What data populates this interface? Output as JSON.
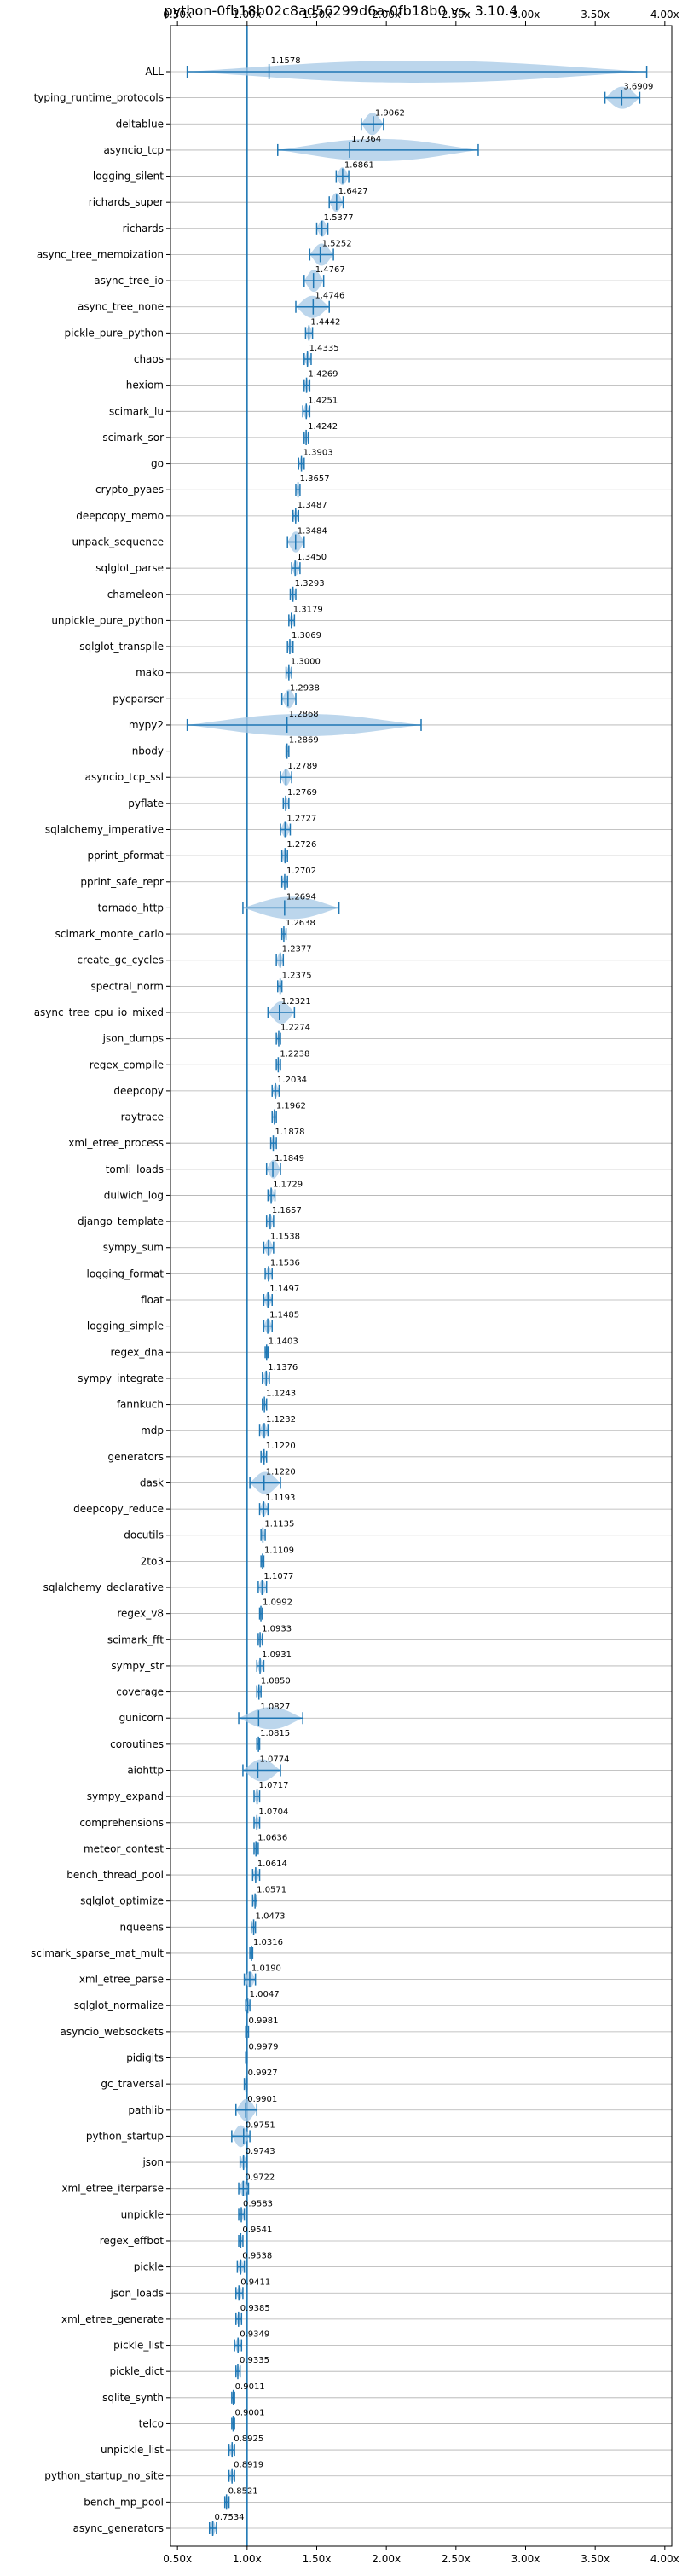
{
  "chart_data": {
    "type": "violin",
    "title": "python-0fb18b02c8ad56299d6a-0fb18b0 vs. 3.10.4",
    "xlim": [
      0.45,
      4.05
    ],
    "xticks": [
      "0.50x",
      "1.00x",
      "1.50x",
      "2.00x",
      "2.50x",
      "3.00x",
      "3.50x",
      "4.00x"
    ],
    "reference_line": 1.0,
    "orientation": "horizontal",
    "grid": "horizontal",
    "colors": {
      "violin": "#a6c8e6",
      "marker": "#1f77b4",
      "reference": "#1f77b4"
    },
    "benchmarks": [
      {
        "name": "ALL",
        "value": 1.1578,
        "min": 0.57,
        "max": 3.87
      },
      {
        "name": "typing_runtime_protocols",
        "value": 3.6909,
        "min": 3.57,
        "max": 3.82
      },
      {
        "name": "deltablue",
        "value": 1.9062,
        "min": 1.82,
        "max": 1.98
      },
      {
        "name": "asyncio_tcp",
        "value": 1.7364,
        "min": 1.22,
        "max": 2.66
      },
      {
        "name": "logging_silent",
        "value": 1.6861,
        "min": 1.64,
        "max": 1.73
      },
      {
        "name": "richards_super",
        "value": 1.6427,
        "min": 1.59,
        "max": 1.69
      },
      {
        "name": "richards",
        "value": 1.5377,
        "min": 1.5,
        "max": 1.58
      },
      {
        "name": "async_tree_memoization",
        "value": 1.5252,
        "min": 1.45,
        "max": 1.62
      },
      {
        "name": "async_tree_io",
        "value": 1.4767,
        "min": 1.41,
        "max": 1.55
      },
      {
        "name": "async_tree_none",
        "value": 1.4746,
        "min": 1.35,
        "max": 1.59
      },
      {
        "name": "pickle_pure_python",
        "value": 1.4442,
        "min": 1.42,
        "max": 1.47
      },
      {
        "name": "chaos",
        "value": 1.4335,
        "min": 1.41,
        "max": 1.46
      },
      {
        "name": "hexiom",
        "value": 1.4269,
        "min": 1.41,
        "max": 1.45
      },
      {
        "name": "scimark_lu",
        "value": 1.4251,
        "min": 1.4,
        "max": 1.45
      },
      {
        "name": "scimark_sor",
        "value": 1.4242,
        "min": 1.41,
        "max": 1.44
      },
      {
        "name": "go",
        "value": 1.3903,
        "min": 1.37,
        "max": 1.41
      },
      {
        "name": "crypto_pyaes",
        "value": 1.3657,
        "min": 1.35,
        "max": 1.38
      },
      {
        "name": "deepcopy_memo",
        "value": 1.3487,
        "min": 1.33,
        "max": 1.37
      },
      {
        "name": "unpack_sequence",
        "value": 1.3484,
        "min": 1.29,
        "max": 1.41
      },
      {
        "name": "sqlglot_parse",
        "value": 1.345,
        "min": 1.32,
        "max": 1.38
      },
      {
        "name": "chameleon",
        "value": 1.3293,
        "min": 1.31,
        "max": 1.35
      },
      {
        "name": "unpickle_pure_python",
        "value": 1.3179,
        "min": 1.3,
        "max": 1.34
      },
      {
        "name": "sqlglot_transpile",
        "value": 1.3069,
        "min": 1.29,
        "max": 1.33
      },
      {
        "name": "mako",
        "value": 1.3,
        "min": 1.28,
        "max": 1.32
      },
      {
        "name": "pycparser",
        "value": 1.2938,
        "min": 1.25,
        "max": 1.35
      },
      {
        "name": "mypy2",
        "value": 1.2868,
        "min": 0.57,
        "max": 2.25
      },
      {
        "name": "nbody",
        "value": 1.2869,
        "min": 1.28,
        "max": 1.3
      },
      {
        "name": "asyncio_tcp_ssl",
        "value": 1.2789,
        "min": 1.24,
        "max": 1.32
      },
      {
        "name": "pyflate",
        "value": 1.2769,
        "min": 1.26,
        "max": 1.3
      },
      {
        "name": "sqlalchemy_imperative",
        "value": 1.2727,
        "min": 1.24,
        "max": 1.31
      },
      {
        "name": "pprint_pformat",
        "value": 1.2726,
        "min": 1.25,
        "max": 1.29
      },
      {
        "name": "pprint_safe_repr",
        "value": 1.2702,
        "min": 1.25,
        "max": 1.29
      },
      {
        "name": "tornado_http",
        "value": 1.2694,
        "min": 0.97,
        "max": 1.66
      },
      {
        "name": "scimark_monte_carlo",
        "value": 1.2638,
        "min": 1.25,
        "max": 1.28
      },
      {
        "name": "create_gc_cycles",
        "value": 1.2377,
        "min": 1.21,
        "max": 1.26
      },
      {
        "name": "spectral_norm",
        "value": 1.2375,
        "min": 1.22,
        "max": 1.25
      },
      {
        "name": "async_tree_cpu_io_mixed",
        "value": 1.2321,
        "min": 1.15,
        "max": 1.34
      },
      {
        "name": "json_dumps",
        "value": 1.2274,
        "min": 1.21,
        "max": 1.24
      },
      {
        "name": "regex_compile",
        "value": 1.2238,
        "min": 1.21,
        "max": 1.24
      },
      {
        "name": "deepcopy",
        "value": 1.2034,
        "min": 1.18,
        "max": 1.23
      },
      {
        "name": "raytrace",
        "value": 1.1962,
        "min": 1.18,
        "max": 1.21
      },
      {
        "name": "xml_etree_process",
        "value": 1.1878,
        "min": 1.17,
        "max": 1.21
      },
      {
        "name": "tomli_loads",
        "value": 1.1849,
        "min": 1.14,
        "max": 1.24
      },
      {
        "name": "dulwich_log",
        "value": 1.1729,
        "min": 1.15,
        "max": 1.2
      },
      {
        "name": "django_template",
        "value": 1.1657,
        "min": 1.14,
        "max": 1.19
      },
      {
        "name": "sympy_sum",
        "value": 1.1538,
        "min": 1.12,
        "max": 1.19
      },
      {
        "name": "logging_format",
        "value": 1.1536,
        "min": 1.13,
        "max": 1.18
      },
      {
        "name": "float",
        "value": 1.1497,
        "min": 1.12,
        "max": 1.18
      },
      {
        "name": "logging_simple",
        "value": 1.1485,
        "min": 1.12,
        "max": 1.18
      },
      {
        "name": "regex_dna",
        "value": 1.1403,
        "min": 1.13,
        "max": 1.15
      },
      {
        "name": "sympy_integrate",
        "value": 1.1376,
        "min": 1.11,
        "max": 1.16
      },
      {
        "name": "fannkuch",
        "value": 1.1243,
        "min": 1.11,
        "max": 1.14
      },
      {
        "name": "mdp",
        "value": 1.1232,
        "min": 1.09,
        "max": 1.15
      },
      {
        "name": "generators",
        "value": 1.122,
        "min": 1.1,
        "max": 1.14
      },
      {
        "name": "dask",
        "value": 1.122,
        "min": 1.02,
        "max": 1.24
      },
      {
        "name": "deepcopy_reduce",
        "value": 1.1193,
        "min": 1.09,
        "max": 1.15
      },
      {
        "name": "docutils",
        "value": 1.1135,
        "min": 1.1,
        "max": 1.13
      },
      {
        "name": "2to3",
        "value": 1.1109,
        "min": 1.1,
        "max": 1.12
      },
      {
        "name": "sqlalchemy_declarative",
        "value": 1.1077,
        "min": 1.08,
        "max": 1.14
      },
      {
        "name": "regex_v8",
        "value": 1.0992,
        "min": 1.09,
        "max": 1.11
      },
      {
        "name": "scimark_fft",
        "value": 1.0933,
        "min": 1.08,
        "max": 1.11
      },
      {
        "name": "sympy_str",
        "value": 1.0931,
        "min": 1.07,
        "max": 1.12
      },
      {
        "name": "coverage",
        "value": 1.085,
        "min": 1.07,
        "max": 1.1
      },
      {
        "name": "gunicorn",
        "value": 1.0827,
        "min": 0.94,
        "max": 1.4
      },
      {
        "name": "coroutines",
        "value": 1.0815,
        "min": 1.07,
        "max": 1.09
      },
      {
        "name": "aiohttp",
        "value": 1.0774,
        "min": 0.97,
        "max": 1.24
      },
      {
        "name": "sympy_expand",
        "value": 1.0717,
        "min": 1.05,
        "max": 1.09
      },
      {
        "name": "comprehensions",
        "value": 1.0704,
        "min": 1.05,
        "max": 1.09
      },
      {
        "name": "meteor_contest",
        "value": 1.0636,
        "min": 1.05,
        "max": 1.08
      },
      {
        "name": "bench_thread_pool",
        "value": 1.0614,
        "min": 1.04,
        "max": 1.09
      },
      {
        "name": "sqlglot_optimize",
        "value": 1.0571,
        "min": 1.04,
        "max": 1.07
      },
      {
        "name": "nqueens",
        "value": 1.0473,
        "min": 1.03,
        "max": 1.06
      },
      {
        "name": "scimark_sparse_mat_mult",
        "value": 1.0316,
        "min": 1.02,
        "max": 1.04
      },
      {
        "name": "xml_etree_parse",
        "value": 1.019,
        "min": 0.98,
        "max": 1.06
      },
      {
        "name": "sqlglot_normalize",
        "value": 1.0047,
        "min": 0.99,
        "max": 1.02
      },
      {
        "name": "asyncio_websockets",
        "value": 0.9981,
        "min": 0.99,
        "max": 1.01
      },
      {
        "name": "pidigits",
        "value": 0.9979,
        "min": 0.99,
        "max": 1.0
      },
      {
        "name": "gc_traversal",
        "value": 0.9927,
        "min": 0.98,
        "max": 1.0
      },
      {
        "name": "pathlib",
        "value": 0.9901,
        "min": 0.92,
        "max": 1.07
      },
      {
        "name": "python_startup",
        "value": 0.9751,
        "min": 0.89,
        "max": 1.02
      },
      {
        "name": "json",
        "value": 0.9743,
        "min": 0.95,
        "max": 1.0
      },
      {
        "name": "xml_etree_iterparse",
        "value": 0.9722,
        "min": 0.94,
        "max": 1.01
      },
      {
        "name": "unpickle",
        "value": 0.9583,
        "min": 0.94,
        "max": 0.98
      },
      {
        "name": "regex_effbot",
        "value": 0.9541,
        "min": 0.94,
        "max": 0.97
      },
      {
        "name": "pickle",
        "value": 0.9538,
        "min": 0.93,
        "max": 0.98
      },
      {
        "name": "json_loads",
        "value": 0.9411,
        "min": 0.92,
        "max": 0.97
      },
      {
        "name": "xml_etree_generate",
        "value": 0.9385,
        "min": 0.92,
        "max": 0.96
      },
      {
        "name": "pickle_list",
        "value": 0.9349,
        "min": 0.91,
        "max": 0.96
      },
      {
        "name": "pickle_dict",
        "value": 0.9335,
        "min": 0.92,
        "max": 0.95
      },
      {
        "name": "sqlite_synth",
        "value": 0.9011,
        "min": 0.89,
        "max": 0.91
      },
      {
        "name": "telco",
        "value": 0.9001,
        "min": 0.89,
        "max": 0.91
      },
      {
        "name": "unpickle_list",
        "value": 0.8925,
        "min": 0.87,
        "max": 0.91
      },
      {
        "name": "python_startup_no_site",
        "value": 0.8919,
        "min": 0.87,
        "max": 0.91
      },
      {
        "name": "bench_mp_pool",
        "value": 0.8521,
        "min": 0.84,
        "max": 0.87
      },
      {
        "name": "async_generators",
        "value": 0.7534,
        "min": 0.73,
        "max": 0.78
      }
    ]
  }
}
